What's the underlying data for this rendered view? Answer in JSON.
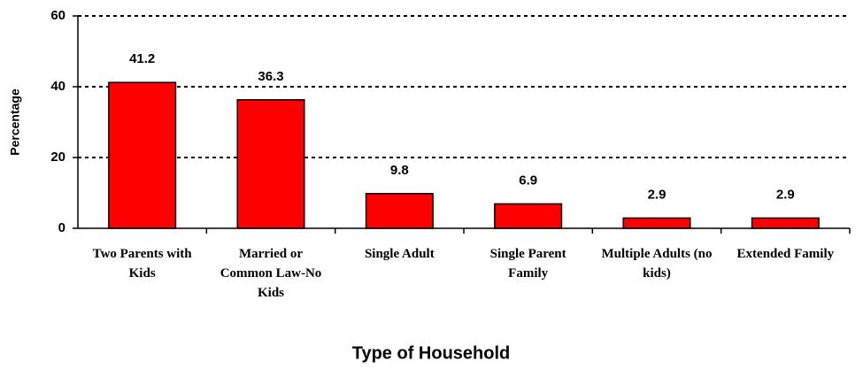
{
  "chart_data": {
    "type": "bar",
    "categories": [
      "Two Parents with Kids",
      "Married or Common Law-No Kids",
      "Single Adult",
      "Single Parent Family",
      "Multiple Adults (no kids)",
      "Extended Family"
    ],
    "values": [
      41.2,
      36.3,
      9.8,
      6.9,
      2.9,
      2.9
    ],
    "color": "#ff0000",
    "ylim": [
      0,
      60
    ],
    "yticks": [
      0,
      20,
      40,
      60
    ],
    "grid": true,
    "ylabel": "Percentage",
    "xlabel": "Type of Household"
  }
}
